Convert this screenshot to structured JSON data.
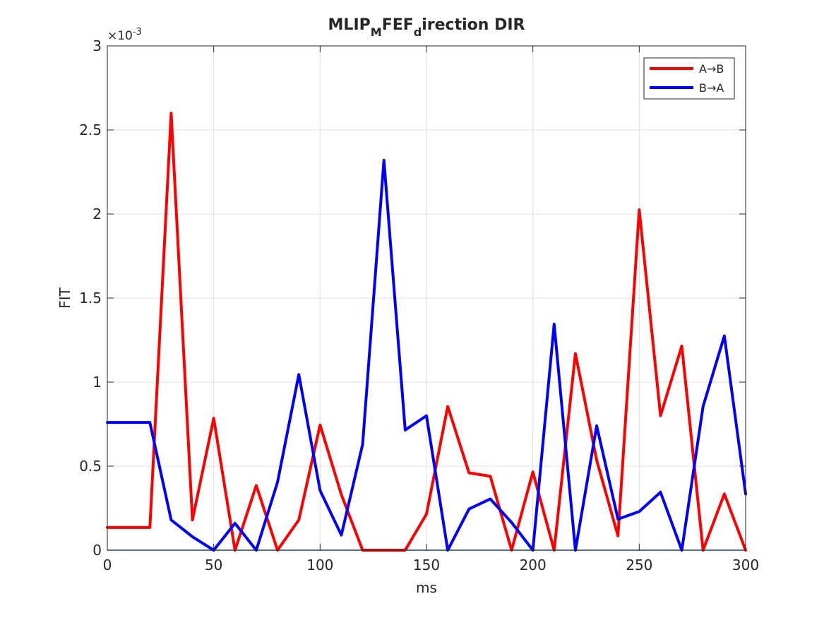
{
  "chart_data": {
    "type": "line",
    "title_parts": {
      "t1": "MLIP",
      "s1": "M",
      "t2": "FEF",
      "s2": "d",
      "t3": "irection DIR"
    },
    "xlabel": "ms",
    "ylabel": "FIT",
    "exponent_label": "×10",
    "exponent_power": "-3",
    "xlim": [
      0,
      300
    ],
    "ylim": [
      0,
      3
    ],
    "x_ticks": [
      0,
      50,
      100,
      150,
      200,
      250,
      300
    ],
    "x_tick_labels": [
      "0",
      "50",
      "100",
      "150",
      "200",
      "250",
      "300"
    ],
    "y_ticks": [
      0,
      0.5,
      1,
      1.5,
      2,
      2.5,
      3
    ],
    "y_tick_labels": [
      "0",
      "0.5",
      "1",
      "1.5",
      "2",
      "2.5",
      "3"
    ],
    "grid": true,
    "legend_position": "top-right",
    "x": [
      0,
      10,
      20,
      30,
      40,
      50,
      60,
      70,
      80,
      90,
      100,
      110,
      120,
      130,
      140,
      150,
      160,
      170,
      180,
      190,
      200,
      210,
      220,
      230,
      240,
      250,
      260,
      270,
      280,
      290,
      300
    ],
    "series": [
      {
        "name": "A→B",
        "color": "#ff0000",
        "values": [
          0.135,
          0.135,
          0.135,
          2.6,
          0.18,
          0.785,
          0.0,
          0.385,
          0.0,
          0.18,
          0.745,
          0.33,
          0.0,
          0.0,
          0.0,
          0.215,
          0.855,
          0.46,
          0.44,
          0.0,
          0.465,
          0.0,
          1.17,
          0.535,
          0.085,
          2.025,
          0.8,
          1.215,
          0.0,
          0.335,
          0.0
        ]
      },
      {
        "name": "B→A",
        "color": "#0000ff",
        "values": [
          0.76,
          0.76,
          0.76,
          0.18,
          0.08,
          0.0,
          0.16,
          0.0,
          0.405,
          1.045,
          0.355,
          0.09,
          0.63,
          2.32,
          0.715,
          0.8,
          0.0,
          0.245,
          0.305,
          0.165,
          0.0,
          1.345,
          0.0,
          0.74,
          0.185,
          0.23,
          0.345,
          0.0,
          0.855,
          1.275,
          0.335
        ]
      }
    ],
    "baseline": {
      "y": 0,
      "color": "#0072bd"
    }
  }
}
